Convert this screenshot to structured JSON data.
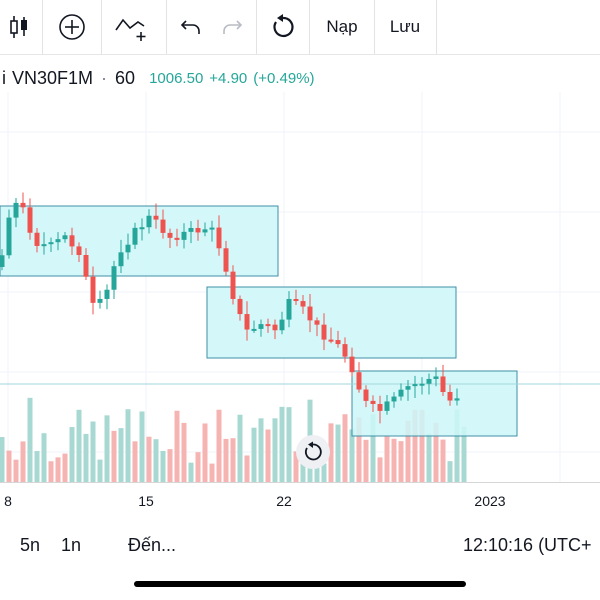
{
  "toolbar": {
    "items": [
      {
        "name": "candles-icon"
      },
      {
        "name": "add-indicator-icon"
      },
      {
        "name": "compare-icon"
      },
      {
        "name": "undo-icon"
      },
      {
        "name": "redo-icon"
      },
      {
        "name": "reload-icon"
      }
    ],
    "load_label": "Nạp",
    "save_label": "Lưu"
  },
  "symbol": {
    "prefix": "i",
    "name": "VN30F1M",
    "separator": "·",
    "interval": "60",
    "price": "1006.50",
    "change": "+4.90",
    "change_pct": "(+0.49%)"
  },
  "colors": {
    "up": "#26a69a",
    "down": "#ef5350",
    "up_volume": "#a7d9d2",
    "down_volume": "#f5b3b2",
    "rect_fill": "#ccf7f9",
    "rect_stroke": "#3f8fa6",
    "price_line": "#a3d6dc"
  },
  "time_axis": {
    "ticks": [
      "8",
      "15",
      "22",
      "2023"
    ]
  },
  "bottom": {
    "range_5d": "5n",
    "range_1d": "1n",
    "goto": "Đến...",
    "clock": "12:10:16 (UTC+"
  },
  "reset_icon": "reset-icon"
}
